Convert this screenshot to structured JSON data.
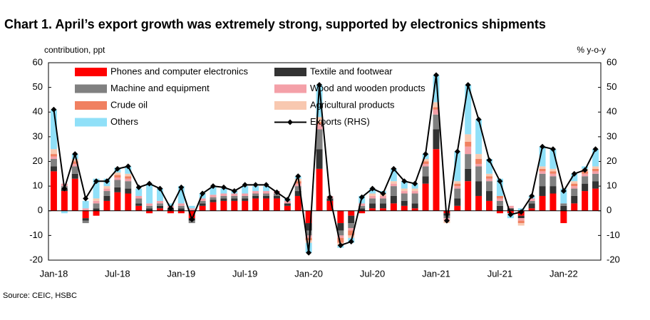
{
  "chart_data": {
    "type": "bar",
    "title": "Chart 1. April’s export growth was extremely strong, supported by electronics shipments",
    "y_label": "contribution,  ppt",
    "y2_label": "% y-o-y",
    "source": "Source:  CEIC, HSBC",
    "categories": [
      "Jan-18",
      null,
      null,
      null,
      null,
      null,
      "Jul-18",
      null,
      null,
      null,
      null,
      null,
      "Jan-19",
      null,
      null,
      null,
      null,
      null,
      "Jul-19",
      null,
      null,
      null,
      null,
      null,
      "Jan-20",
      null,
      null,
      null,
      null,
      null,
      "Jul-20",
      null,
      null,
      null,
      null,
      null,
      "Jan-21",
      null,
      null,
      null,
      null,
      null,
      "Jul-21",
      null,
      null,
      null,
      null,
      null,
      "Jan-22",
      null,
      null,
      null
    ],
    "series": [
      {
        "name": "Phones and computer electronics",
        "color": "#ff0000",
        "values": [
          16,
          8,
          13,
          -3,
          -2,
          4,
          7.5,
          7,
          2,
          -1,
          1,
          -1,
          -1,
          -3,
          2,
          3.5,
          4,
          4,
          4,
          5,
          5,
          5,
          2,
          6,
          -5,
          17,
          4,
          -5,
          -2,
          -1,
          1,
          1,
          3,
          2,
          1,
          11,
          25,
          -1,
          2,
          12,
          6,
          4,
          -1,
          -1,
          -2,
          1,
          6,
          7,
          -5,
          3,
          8,
          9
        ]
      },
      {
        "name": "Textile and footwear",
        "color": "#333333",
        "values": [
          2,
          1,
          2,
          -1,
          1,
          2,
          2,
          2,
          1,
          1,
          1,
          1,
          1,
          -1,
          1,
          1,
          1,
          1,
          1,
          1,
          1,
          1,
          1,
          2,
          -3,
          8,
          1,
          -3,
          -3,
          1,
          2,
          2,
          3,
          2,
          2,
          3,
          8,
          -1,
          3,
          5,
          6,
          4,
          2,
          1,
          -1,
          2,
          4,
          3,
          2,
          3,
          3,
          3
        ]
      },
      {
        "name": "Machine and equipment",
        "color": "#808080",
        "values": [
          3,
          1,
          3,
          -1,
          2,
          2,
          3,
          3,
          2,
          1,
          1,
          0,
          1,
          -1,
          1,
          1,
          1,
          1,
          1,
          1,
          1,
          1,
          0,
          2,
          -2,
          8,
          0,
          -2,
          -2,
          1,
          2,
          2,
          4,
          3,
          4,
          4,
          6,
          -1,
          4,
          6,
          6,
          4,
          2,
          0,
          0,
          1,
          5,
          4,
          1,
          3,
          3,
          3
        ]
      },
      {
        "name": "Wood and wooden products",
        "color": "#f4a0a8",
        "values": [
          1,
          1,
          1,
          1,
          1,
          1,
          1,
          1,
          1,
          1,
          1,
          1,
          1,
          1,
          1,
          1,
          1,
          1,
          1,
          1,
          1,
          1,
          1,
          1,
          -1,
          2,
          1,
          -1,
          -1,
          1,
          1,
          1,
          1,
          1,
          1,
          1,
          2,
          -1,
          1,
          3,
          1,
          1,
          1,
          1,
          -1,
          1,
          1,
          1,
          0,
          1,
          1,
          1
        ]
      },
      {
        "name": "Crude oil",
        "color": "#f08060",
        "values": [
          1,
          0,
          1,
          0,
          0,
          0,
          1,
          1,
          0,
          0,
          0,
          0,
          0,
          0,
          0,
          0,
          0,
          0,
          0,
          0,
          0,
          0,
          0,
          1,
          -1,
          1,
          0,
          -2,
          -2,
          0,
          0,
          0,
          0,
          0,
          0,
          1,
          1,
          0,
          1,
          2,
          2,
          1,
          1,
          0,
          -1,
          0,
          1,
          1,
          0,
          1,
          1,
          1
        ]
      },
      {
        "name": "Agricultural products",
        "color": "#f8c8b0",
        "values": [
          2,
          0,
          1,
          0,
          1,
          1,
          1,
          1,
          0,
          0,
          0,
          0,
          0,
          0,
          0,
          0,
          0,
          0,
          0,
          0,
          0,
          0,
          0,
          1,
          -1,
          2,
          0,
          -1,
          -1,
          0,
          1,
          1,
          1,
          1,
          1,
          1,
          2,
          -1,
          1,
          3,
          2,
          1,
          0,
          0,
          -1,
          0,
          1,
          1,
          0,
          1,
          1,
          1
        ]
      },
      {
        "name": "Others",
        "color": "#90e0f8",
        "values": [
          16,
          -1,
          2,
          3,
          8,
          3,
          2,
          3,
          3,
          8,
          5,
          1,
          7,
          1,
          2,
          3,
          2,
          1,
          3,
          2,
          2,
          0,
          1,
          1,
          -4,
          13,
          0,
          -1,
          -2,
          3,
          2,
          1,
          5,
          3,
          2,
          2,
          11,
          0,
          12,
          20,
          14,
          6,
          7,
          -2,
          1,
          1,
          8,
          8,
          6,
          3,
          1,
          7
        ]
      },
      {
        "name": "Exports (RHS)",
        "type": "line",
        "axis": "y2",
        "color": "#000000",
        "values": [
          41,
          9,
          23,
          5,
          12,
          12,
          17,
          18,
          9.5,
          11,
          9,
          1,
          9.5,
          -3.5,
          7,
          10,
          9.5,
          8,
          10.5,
          10.5,
          10.5,
          7.5,
          4.5,
          14,
          -17,
          51,
          5.5,
          -14,
          -12.5,
          5.5,
          9,
          7,
          17,
          12,
          11,
          23,
          55,
          -4,
          24,
          51,
          37,
          20.5,
          12,
          -1.5,
          -0.5,
          6,
          26,
          25,
          8,
          15,
          16.5,
          25
        ]
      }
    ],
    "ylim": [
      -20,
      60
    ],
    "yticks": [
      -20,
      -10,
      0,
      10,
      20,
      30,
      40,
      50,
      60
    ],
    "y2lim": [
      -20,
      60
    ],
    "y2ticks": [
      -20,
      -10,
      0,
      10,
      20,
      30,
      40,
      50,
      60
    ]
  }
}
